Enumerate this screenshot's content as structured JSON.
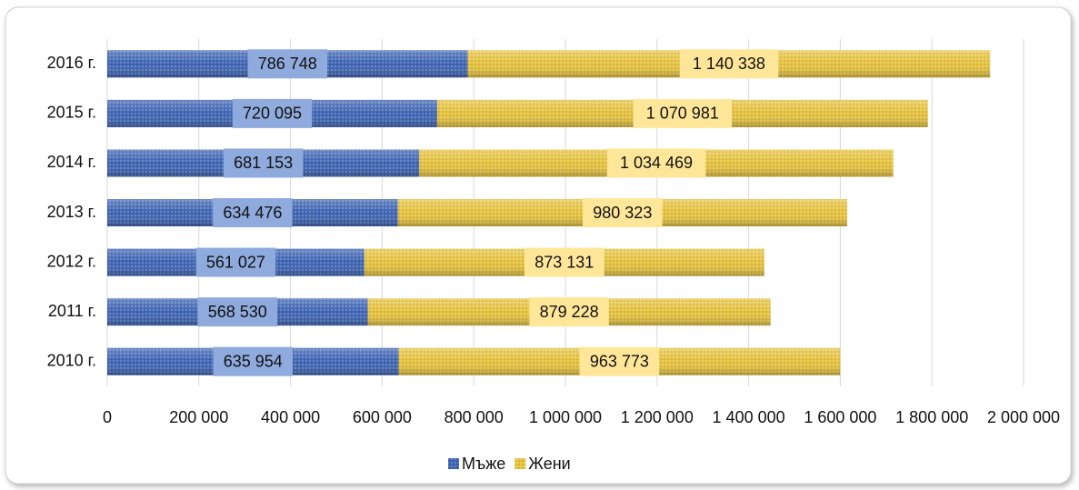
{
  "chart_data": {
    "type": "bar",
    "orientation": "horizontal",
    "stacked": true,
    "categories": [
      "2010 г.",
      "2011 г.",
      "2012 г.",
      "2013 г.",
      "2014 г.",
      "2015 г.",
      "2016 г."
    ],
    "series": [
      {
        "name": "Мъже",
        "color": "#3e64b4",
        "label_color": "#8faadc",
        "values": [
          635954,
          568530,
          561027,
          634476,
          681153,
          720095,
          786748
        ],
        "value_labels": [
          "635 954",
          "568 530",
          "561 027",
          "634 476",
          "681 153",
          "720 095",
          "786 748"
        ]
      },
      {
        "name": "Жени",
        "color": "#e6c23c",
        "label_color": "#ffe699",
        "values": [
          963773,
          879228,
          873131,
          980323,
          1034469,
          1070981,
          1140338
        ],
        "value_labels": [
          "963 773",
          "879 228",
          "873 131",
          "980 323",
          "1 034 469",
          "1 070 981",
          "1 140 338"
        ]
      }
    ],
    "xlim": [
      0,
      2000000
    ],
    "xticks": [
      0,
      {
        "value": 200000,
        "label": "200 000"
      },
      {
        "value": 400000,
        "label": "400 000"
      },
      {
        "value": 600000,
        "label": "600 000"
      },
      {
        "value": 800000,
        "label": "800 000"
      },
      {
        "value": 1000000,
        "label": "1 000 000"
      },
      {
        "value": 1200000,
        "label": "1 200 000"
      },
      {
        "value": 1400000,
        "label": "1 400 000"
      },
      {
        "value": 1600000,
        "label": "1 600 000"
      },
      {
        "value": 1800000,
        "label": "1 800 000"
      },
      {
        "value": 2000000,
        "label": "2 000 000"
      }
    ],
    "grid": true,
    "legend": "bottom"
  }
}
